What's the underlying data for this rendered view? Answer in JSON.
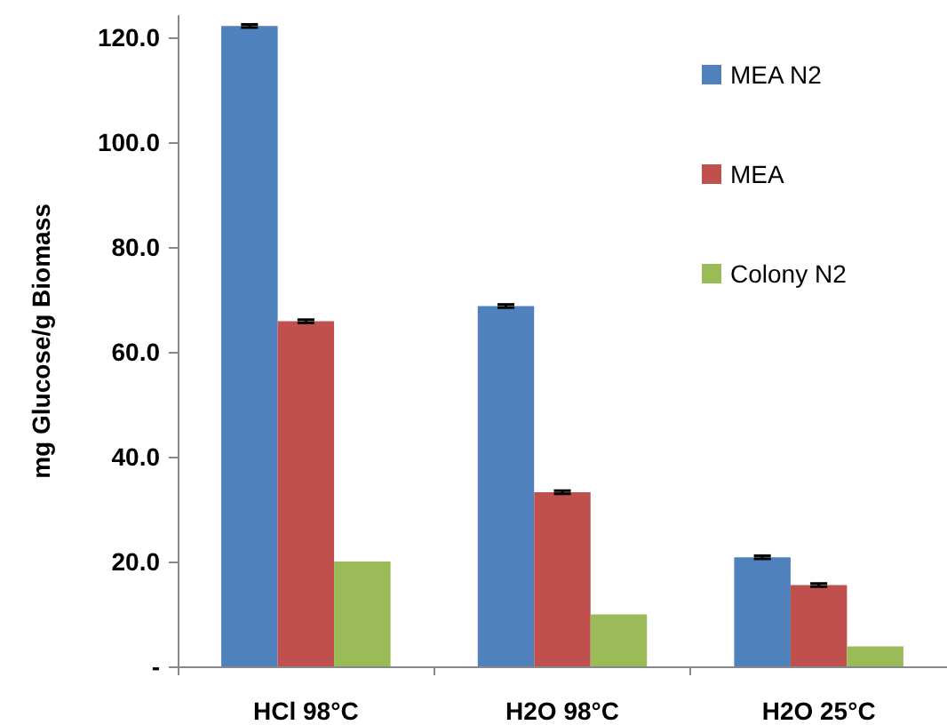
{
  "chart_data": {
    "type": "bar",
    "ylabel": "mg Glucose/g Biomass",
    "categories": [
      "HCl 98°C",
      "H2O 98°C",
      "H2O 25°C"
    ],
    "series": [
      {
        "name": "MEA N2",
        "color": "#4f81bd",
        "values": [
          122.1,
          68.7,
          20.8
        ],
        "errors": [
          0.3,
          0.3,
          0.3
        ]
      },
      {
        "name": "MEA",
        "color": "#c0504d",
        "values": [
          65.8,
          33.2,
          15.5
        ],
        "errors": [
          0.3,
          0.3,
          0.3
        ]
      },
      {
        "name": "Colony N2",
        "color": "#9bbb59",
        "values": [
          20.0,
          9.9,
          3.8
        ]
      }
    ],
    "ylim": [
      0,
      124
    ],
    "yticks": [
      {
        "value": 0,
        "label": "-"
      },
      {
        "value": 20,
        "label": "20.0"
      },
      {
        "value": 40,
        "label": "40.0"
      },
      {
        "value": 60,
        "label": "60.0"
      },
      {
        "value": 80,
        "label": "80.0"
      },
      {
        "value": 100,
        "label": "100.0"
      },
      {
        "value": 120,
        "label": "120.0"
      }
    ],
    "grid": false,
    "legend": "right"
  }
}
